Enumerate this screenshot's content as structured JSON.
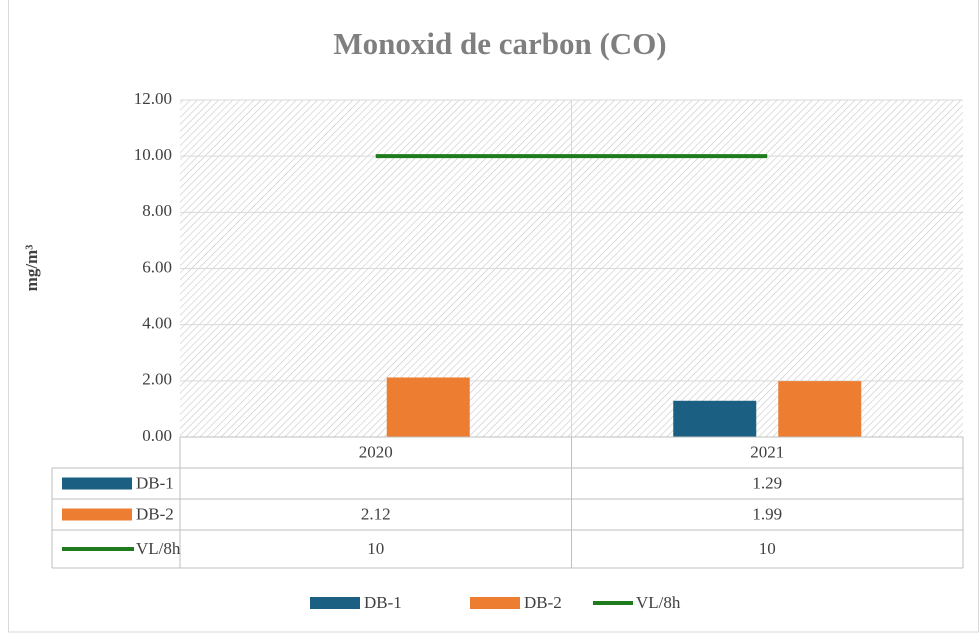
{
  "chart_data": {
    "type": "bar",
    "title": "Monoxid de carbon (CO)",
    "y_label": "mg/m³",
    "categories": [
      "2020",
      "2021"
    ],
    "series": [
      {
        "name": "DB-1",
        "type": "bar",
        "color": "#1b5f82",
        "values": [
          null,
          1.29
        ]
      },
      {
        "name": "DB-2",
        "type": "bar",
        "color": "#ed7d31",
        "values": [
          2.12,
          1.99
        ]
      },
      {
        "name": "VL/8h",
        "type": "line",
        "color": "#1e7b1e",
        "values": [
          10,
          10
        ]
      }
    ],
    "ylim": [
      0,
      12
    ],
    "yticks": [
      {
        "value": 0,
        "label": "0.00"
      },
      {
        "value": 2,
        "label": "2.00"
      },
      {
        "value": 4,
        "label": "4.00"
      },
      {
        "value": 6,
        "label": "6.00"
      },
      {
        "value": 8,
        "label": "8.00"
      },
      {
        "value": 10,
        "label": "10.00"
      },
      {
        "value": 12,
        "label": "12.00"
      }
    ],
    "grid": true,
    "data_table": true,
    "legend": "bottom"
  }
}
